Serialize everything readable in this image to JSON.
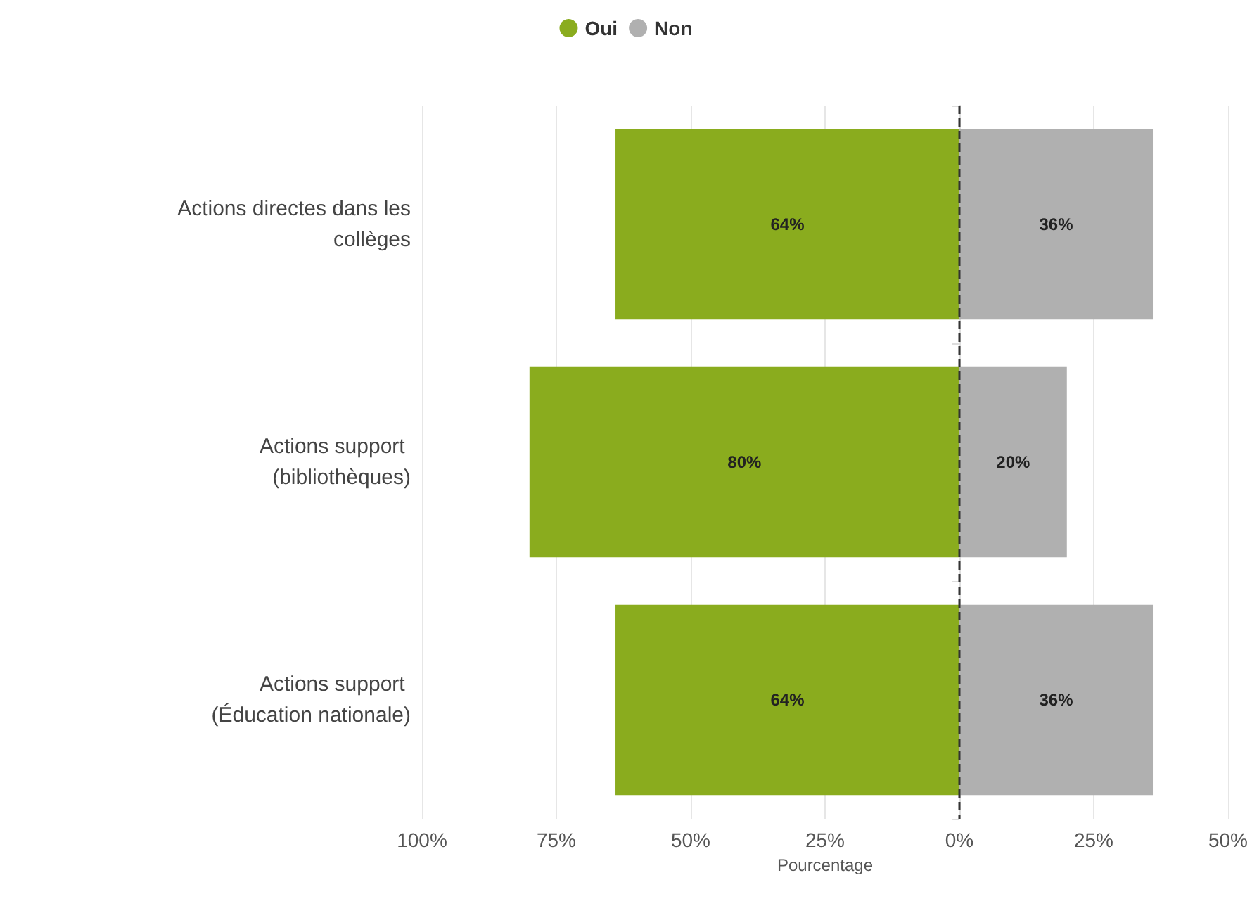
{
  "chart_data": {
    "type": "bar",
    "orientation": "horizontal",
    "xlabel": "Pourcentage",
    "categories": [
      "Actions directes dans les collèges",
      "Actions support (bibliothèques)",
      "Actions support (Éducation nationale)"
    ],
    "series": [
      {
        "name": "Oui",
        "color": "#8aac1e",
        "base": [
          -64,
          -80,
          -64
        ],
        "values": [
          64,
          80,
          64
        ],
        "value_labels": [
          "64%",
          "80%",
          "64%"
        ]
      },
      {
        "name": "Non",
        "color": "#b0b0b0",
        "base": [
          0,
          0,
          0
        ],
        "values": [
          36,
          20,
          36
        ],
        "value_labels": [
          "36%",
          "20%",
          "36%"
        ]
      }
    ],
    "xlim": [
      -100,
      50
    ],
    "xticks": [
      {
        "value": -100,
        "label": "100%"
      },
      {
        "value": -75,
        "label": "75%"
      },
      {
        "value": -50,
        "label": "50%"
      },
      {
        "value": -25,
        "label": "25%"
      },
      {
        "value": 0,
        "label": "0%"
      },
      {
        "value": 25,
        "label": "25%"
      },
      {
        "value": 50,
        "label": "50%"
      }
    ],
    "ref_lines": [
      {
        "axis": "x",
        "value": 0,
        "color": "#333333",
        "line_style": "dashed"
      }
    ],
    "grid": "x",
    "legend": "top"
  }
}
